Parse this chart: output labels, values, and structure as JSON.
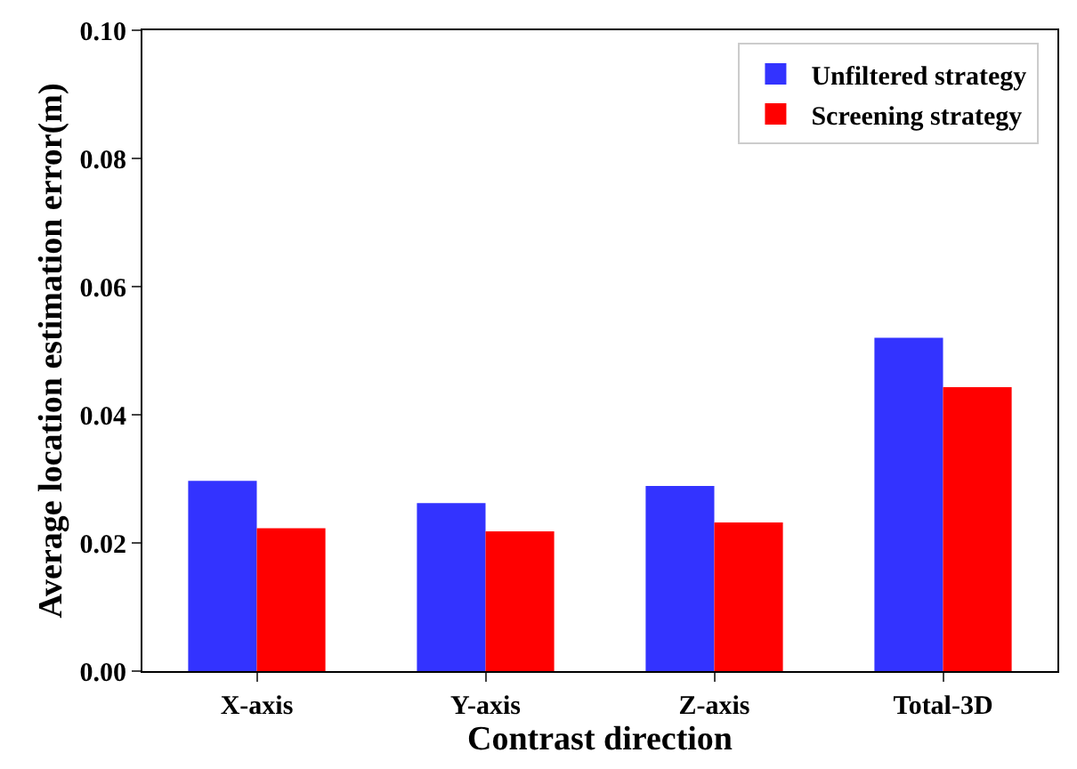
{
  "chart_data": {
    "type": "bar",
    "xlabel": "Contrast direction",
    "ylabel": "Average location estimation error(m)",
    "categories": [
      "X-axis",
      "Y-axis",
      "Z-axis",
      "Total-3D"
    ],
    "series": [
      {
        "name": "Unfiltered strategy",
        "color": "#3333ff",
        "values": [
          0.0297,
          0.0262,
          0.0289,
          0.052
        ]
      },
      {
        "name": "Screening strategy",
        "color": "#ff0000",
        "values": [
          0.0223,
          0.0218,
          0.0232,
          0.0443
        ]
      }
    ],
    "ylim": [
      0,
      0.1
    ],
    "yticks": [
      {
        "value": 0,
        "label": "0.00"
      },
      {
        "value": 0.02,
        "label": "0.02"
      },
      {
        "value": 0.04,
        "label": "0.04"
      },
      {
        "value": 0.06,
        "label": "0.06"
      },
      {
        "value": 0.08,
        "label": "0.08"
      },
      {
        "value": 0.1,
        "label": "0.10"
      }
    ],
    "legend": "top right"
  }
}
